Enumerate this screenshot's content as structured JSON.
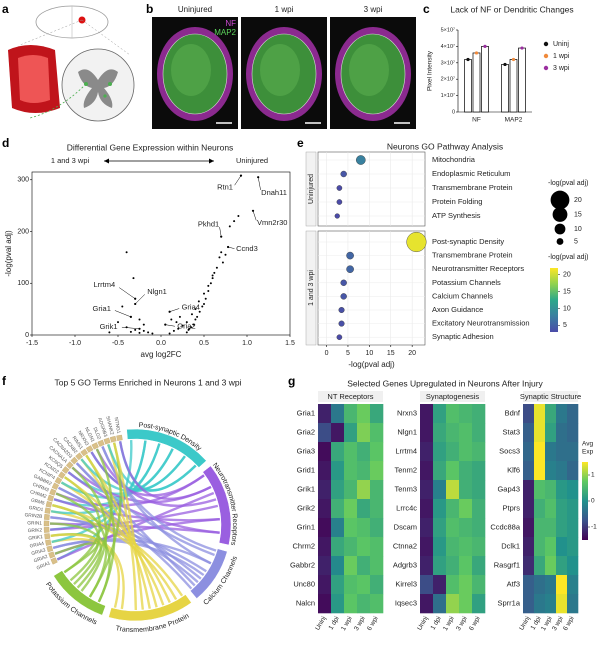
{
  "panel_letters": [
    "a",
    "b",
    "c",
    "d",
    "e",
    "f",
    "g"
  ],
  "images": {
    "labels": [
      "Uninjured",
      "1 wpi",
      "3 wpi"
    ],
    "stains": [
      "NF",
      "MAP2"
    ]
  },
  "chart_data": [
    {
      "type": "bar",
      "title": "Lack of NF or Dendritic Changes",
      "ylabel": "Pixel Intensity",
      "categories": [
        "NF",
        "MAP2"
      ],
      "series": [
        {
          "name": "Uninj",
          "color": "#111111",
          "values": [
            32000000,
            29000000
          ]
        },
        {
          "name": "1 wpi",
          "color": "#f08a3c",
          "values": [
            36000000,
            32000000
          ]
        },
        {
          "name": "3 wpi",
          "color": "#9b2fa0",
          "values": [
            40000000,
            39000000
          ]
        }
      ],
      "ylim": [
        0,
        50000000
      ],
      "yticks": [
        0,
        {
          "value": 10000000,
          "label": "1×10⁷"
        },
        {
          "value": 20000000,
          "label": "2×10⁷"
        },
        {
          "value": 30000000,
          "label": "3×10⁷"
        },
        {
          "value": 40000000,
          "label": "4×10⁷"
        },
        {
          "value": 50000000,
          "label": "5×10⁷"
        }
      ]
    },
    {
      "type": "scatter",
      "title": "Differential Gene Expression within Neurons",
      "direction_labels": [
        "1 and 3 wpi",
        "Uninjured"
      ],
      "xlabel": "avg log2FC",
      "ylabel": "-log(pval adj)",
      "xlim": [
        -1.5,
        1.5
      ],
      "ylim": [
        0,
        315
      ],
      "xticks": [
        -1.5,
        {
          "value": -1,
          "label": "-1.0"
        },
        -0.5,
        {
          "value": 0,
          "label": "0.0"
        },
        0.5,
        {
          "value": 1,
          "label": "1.0"
        },
        1.5
      ],
      "yticks": [
        0,
        100,
        200,
        300
      ],
      "color": "#000000",
      "x": [
        0.3,
        0.32,
        0.35,
        0.38,
        0.4,
        0.42,
        0.45,
        0.48,
        0.5,
        0.52,
        0.55,
        0.58,
        0.6,
        0.62,
        0.65,
        0.68,
        0.7,
        0.72,
        0.75,
        0.8,
        0.85,
        0.9,
        0.3,
        0.33,
        0.36,
        0.4,
        0.44,
        0.5,
        0.55,
        0.6,
        -0.1,
        -0.15,
        -0.2,
        -0.25,
        -0.3,
        -0.35,
        -0.4,
        -0.2,
        -0.25,
        -0.45,
        -0.5,
        -0.6,
        0.1,
        0.15,
        0.2,
        0.25,
        0.12,
        0.18,
        0.22,
        -0.4,
        -0.32
      ],
      "y": [
        5,
        10,
        15,
        20,
        30,
        35,
        45,
        55,
        60,
        70,
        85,
        100,
        110,
        120,
        130,
        150,
        160,
        140,
        155,
        210,
        220,
        230,
        25,
        12,
        40,
        50,
        65,
        80,
        95,
        115,
        3,
        5,
        8,
        4,
        10,
        6,
        15,
        20,
        30,
        55,
        25,
        5,
        3,
        8,
        12,
        18,
        30,
        25,
        35,
        160,
        110
      ],
      "labeled": {
        "names": [
          "Rtn1",
          "Dnah11",
          "Vmn2r30",
          "Pkhd1",
          "Ccnd3",
          "Lrrtm4",
          "Nlgn1",
          "Gria1",
          "Grik1",
          "Gria4",
          "Gria2"
        ],
        "x": [
          0.93,
          1.13,
          1.07,
          0.7,
          0.78,
          -0.3,
          -0.3,
          -0.35,
          -0.25,
          0.1,
          0.05
        ],
        "y": [
          308,
          305,
          240,
          190,
          170,
          70,
          60,
          35,
          12,
          45,
          20
        ]
      }
    },
    {
      "type": "dotplot",
      "title": "Neurons GO Pathway Analysis",
      "xlabel": "-log(pval adj)",
      "xlim": [
        -2,
        23
      ],
      "xticks": [
        0,
        5,
        10,
        15,
        20
      ],
      "clim": [
        3,
        22
      ],
      "groups": [
        {
          "name": "Uninjured",
          "categories": [
            "Mitochondria",
            "Endoplasmic Reticulum",
            "Transmembrane Protein",
            "Protein Folding",
            "ATP Synthesis"
          ],
          "values": [
            8,
            4,
            3,
            3,
            2.5
          ]
        },
        {
          "name": "1 and 3 wpi",
          "categories": [
            "Post-synaptic Density",
            "Transmembrane Protein",
            "Neurotransmitter Receptors",
            "Potassium Channels",
            "Calcium Channels",
            "Axon Guidance",
            "Excitatory Neurotransmission",
            "Synaptic Adhesion"
          ],
          "values": [
            21,
            5.5,
            5.5,
            4,
            4,
            3.5,
            3.5,
            3
          ]
        }
      ],
      "size_legend": {
        "title": "-log(pval adj)",
        "values": [
          20,
          15,
          10,
          5
        ]
      },
      "color_legend": {
        "title": "-log(pval adj)",
        "ticks": [
          20,
          15,
          10,
          5
        ]
      }
    },
    {
      "type": "chord",
      "title": "Top 5 GO Terms Enriched in Neurons 1 and 3 wpi",
      "categories": [
        "Post-synaptic Density",
        "Neurotransmitter Receptors",
        "Calcium Channels",
        "Transmembrane Protein",
        "Potassium Channels"
      ],
      "colors": [
        "#3cc9c9",
        "#9a5fe0",
        "#8c8fe0",
        "#e6d444",
        "#8cc63f"
      ],
      "genes": [
        "GRIA1",
        "GRIA2",
        "GRIA3",
        "GRIA4",
        "GRIK1",
        "GRIK2",
        "GRIN1",
        "GRIN2B",
        "GRID1",
        "GRM5",
        "CHRM2",
        "CHRM3",
        "GABBR2",
        "KCNIP4",
        "KCND2",
        "KCNQ5",
        "CACNA1A",
        "CACNA2D3",
        "CACNB2",
        "RIMS1",
        "NRXN3",
        "NLGN1",
        "DLG2",
        "ADGRB3",
        "SHANK2",
        "NTNG1"
      ]
    },
    {
      "type": "heatmap",
      "title": "Selected Genes Upregulated in Neurons After Injury",
      "columns": [
        "Uninj",
        "1 dpi",
        "1 wpi",
        "3 wpi",
        "6 wpi"
      ],
      "clim": [
        -1.5,
        1.5
      ],
      "cticks": [
        1,
        0,
        -1
      ],
      "colorbar_label": [
        "Avg",
        "Exp"
      ],
      "panels": [
        {
          "title": "NT Receptors",
          "rows": [
            "Gria1",
            "Gria2",
            "Gria3",
            "Grid1",
            "Grik1",
            "Grik2",
            "Grin1",
            "Chrm2",
            "Gabbr2",
            "Unc80",
            "Nalcn"
          ],
          "values": [
            [
              -1.2,
              -0.3,
              0.5,
              0.8,
              0.3
            ],
            [
              -0.8,
              -1.3,
              0.2,
              0.9,
              0.6
            ],
            [
              -1.4,
              0.3,
              0.6,
              0.4,
              0.7
            ],
            [
              -1.3,
              0.1,
              0.6,
              0.5,
              0.8
            ],
            [
              -1.2,
              0.2,
              0.5,
              1.0,
              0.5
            ],
            [
              -1.3,
              0.4,
              0.8,
              0.3,
              0.5
            ],
            [
              -1.4,
              -0.2,
              0.7,
              0.6,
              0.4
            ],
            [
              -1.3,
              0.3,
              0.5,
              0.7,
              0.6
            ],
            [
              -1.2,
              -0.1,
              0.8,
              0.4,
              0.6
            ],
            [
              -1.3,
              0.2,
              0.6,
              0.7,
              0.4
            ],
            [
              -1.4,
              0.1,
              0.7,
              0.5,
              0.6
            ]
          ]
        },
        {
          "title": "Synaptogenesis",
          "rows": [
            "Nrxn3",
            "Nlgn1",
            "Lrrtm4",
            "Tenm2",
            "Tenm3",
            "Lrrc4c",
            "Dscam",
            "Ctnna2",
            "Adgrb3",
            "Kirrel3",
            "Iqsec3"
          ],
          "values": [
            [
              -1.3,
              0.2,
              0.6,
              0.5,
              0.4
            ],
            [
              -1.3,
              0.3,
              0.5,
              0.6,
              0.4
            ],
            [
              -1.2,
              0.2,
              0.4,
              0.6,
              0.5
            ],
            [
              -1.3,
              0.3,
              0.7,
              0.4,
              0.3
            ],
            [
              -1.2,
              -0.2,
              1.2,
              0.4,
              0.3
            ],
            [
              -1.3,
              0.1,
              0.5,
              0.8,
              0.4
            ],
            [
              -1.2,
              0.2,
              0.6,
              0.5,
              0.4
            ],
            [
              -1.3,
              0.1,
              0.5,
              0.6,
              0.5
            ],
            [
              -1.2,
              0.2,
              0.4,
              0.7,
              0.3
            ],
            [
              -0.8,
              -1.2,
              0.6,
              0.8,
              0.5
            ],
            [
              -1.3,
              -0.4,
              1.0,
              0.8,
              0.2
            ]
          ]
        },
        {
          "title": "Synaptic Structure",
          "rows": [
            "Bdnf",
            "Stat3",
            "Socs3",
            "Klf6",
            "Gap43",
            "Ptprs",
            "Ccdc88a",
            "Dclk1",
            "Rasgrf1",
            "Atf3",
            "Sprr1a"
          ],
          "values": [
            [
              -0.8,
              1.4,
              0.3,
              -0.3,
              -0.5
            ],
            [
              -0.6,
              1.4,
              0.2,
              -0.4,
              -0.5
            ],
            [
              -0.5,
              1.5,
              -0.3,
              -0.4,
              -0.4
            ],
            [
              -0.6,
              1.5,
              -0.2,
              -0.3,
              -0.5
            ],
            [
              -1.2,
              0.6,
              0.5,
              0.1,
              0.0
            ],
            [
              -1.2,
              0.4,
              0.6,
              0.2,
              0.1
            ],
            [
              -1.3,
              0.5,
              0.5,
              0.2,
              0.1
            ],
            [
              -1.2,
              0.5,
              0.7,
              0.0,
              0.1
            ],
            [
              -1.1,
              0.3,
              0.8,
              0.2,
              0.0
            ],
            [
              -0.6,
              -0.4,
              -0.3,
              1.5,
              -0.2
            ],
            [
              -0.6,
              -0.3,
              -0.2,
              1.4,
              -0.3
            ]
          ]
        }
      ]
    }
  ]
}
